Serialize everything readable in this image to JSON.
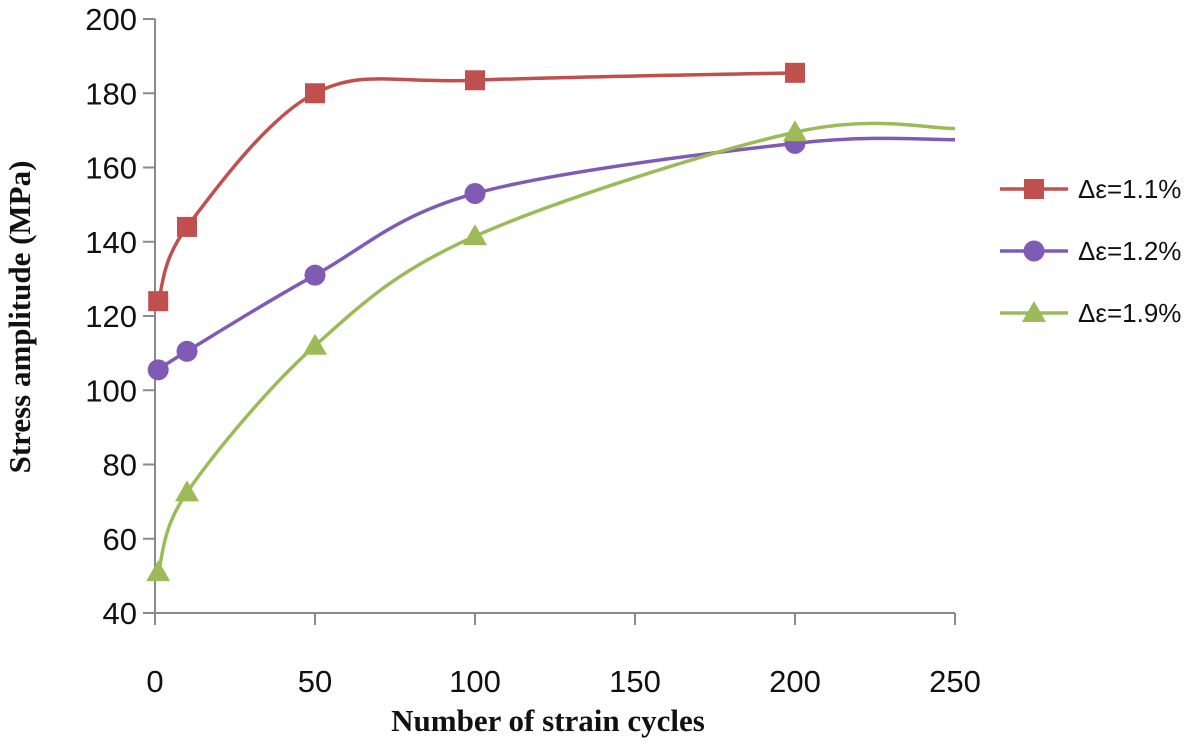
{
  "chart_data": {
    "type": "line",
    "title": "",
    "xlabel": "Number of strain cycles",
    "ylabel": "Stress amplitude (MPa)",
    "xlim": [
      0,
      250
    ],
    "ylim": [
      40,
      200
    ],
    "xticks": [
      0,
      50,
      100,
      150,
      200,
      250
    ],
    "yticks": [
      40,
      60,
      80,
      100,
      120,
      140,
      160,
      180,
      200
    ],
    "smooth": true,
    "grid": false,
    "legend_position": "right",
    "series": [
      {
        "name": "Δε=1.1%",
        "color": "#c0504d",
        "marker": "square",
        "x": [
          1,
          10,
          50,
          100,
          200
        ],
        "y": [
          124,
          144,
          180,
          183.5,
          185.5
        ],
        "extend_to_x": null
      },
      {
        "name": "Δε=1.2%",
        "color": "#7f5bb5",
        "marker": "circle",
        "x": [
          1,
          10,
          50,
          100,
          200
        ],
        "y": [
          105.5,
          110.5,
          131,
          153,
          166.5
        ],
        "extend_to_x": 250,
        "extend_to_y": 167.5
      },
      {
        "name": "Δε=1.9%",
        "color": "#9bbb59",
        "marker": "triangle",
        "x": [
          1,
          10,
          50,
          100,
          200
        ],
        "y": [
          51,
          72.5,
          112,
          141.5,
          169.5
        ],
        "extend_to_x": 250,
        "extend_to_y": 170.5
      }
    ]
  }
}
